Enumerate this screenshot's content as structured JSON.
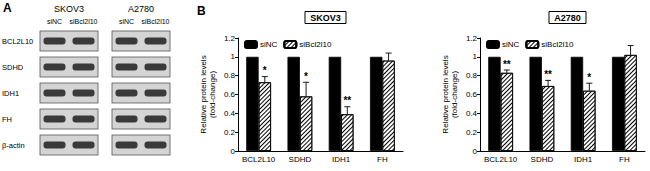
{
  "blot": {
    "panel_label": "A",
    "cell_lines": [
      "SKOV3",
      "A2780"
    ],
    "lanes": [
      "siNC",
      "siBcl2l10"
    ],
    "proteins": [
      "BCL2L10",
      "SDHD",
      "IDH1",
      "FH",
      "β-actin"
    ]
  },
  "panel_b": {
    "label": "B"
  },
  "chart_data": [
    {
      "type": "bar",
      "title": "SKOV3",
      "ylabel": "Relative protein levels\n(fold-change)",
      "categories": [
        "BCL2L10",
        "SDHD",
        "IDH1",
        "FH"
      ],
      "series": [
        {
          "name": "siNC",
          "color": "#000000",
          "values": [
            1,
            1,
            1,
            1
          ]
        },
        {
          "name": "siBcl2l10",
          "color": "#ffffff",
          "values": [
            0.73,
            0.58,
            0.39,
            0.96
          ],
          "errors": [
            0.06,
            0.15,
            0.08,
            0.08
          ],
          "annotations": [
            "*",
            "*",
            "**",
            null
          ]
        }
      ],
      "ylim": [
        0,
        1.2
      ],
      "yticks": [
        0,
        0.2,
        0.4,
        0.6,
        0.8,
        1,
        1.2
      ],
      "grid": false,
      "legend": "upper left"
    },
    {
      "type": "bar",
      "title": "A2780",
      "ylabel": "Relative protein levels\n(fold-change)",
      "categories": [
        "BCL2L10",
        "SDHD",
        "IDH1",
        "FH"
      ],
      "series": [
        {
          "name": "siNC",
          "color": "#000000",
          "values": [
            1,
            1,
            1,
            1
          ]
        },
        {
          "name": "siBcl2l10",
          "color": "#ffffff",
          "values": [
            0.83,
            0.69,
            0.64,
            1.02
          ],
          "errors": [
            0.03,
            0.06,
            0.08,
            0.1
          ],
          "annotations": [
            "**",
            "**",
            "*",
            null
          ]
        }
      ],
      "ylim": [
        0,
        1.2
      ],
      "yticks": [
        0,
        0.2,
        0.4,
        0.6,
        0.8,
        1,
        1.2
      ],
      "grid": false,
      "legend": "upper left"
    }
  ]
}
